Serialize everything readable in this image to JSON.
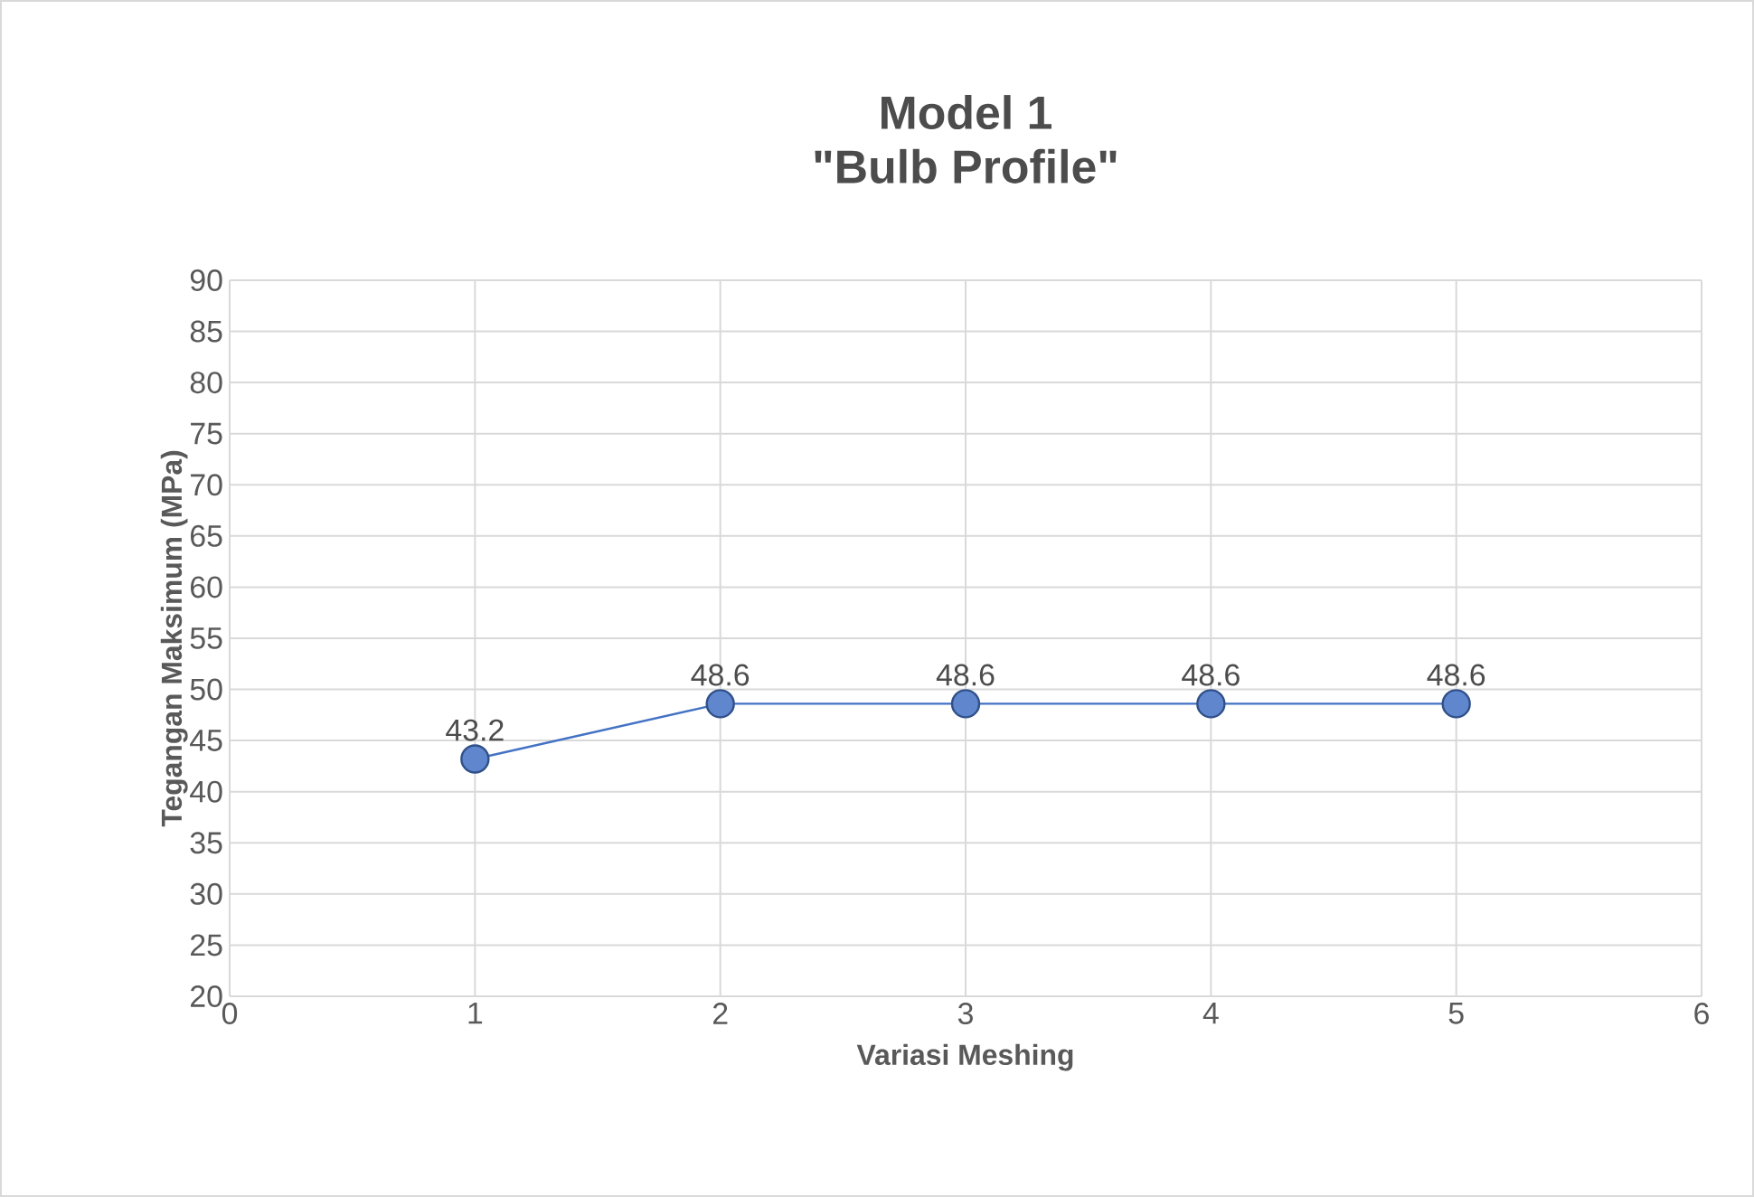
{
  "chart_data": {
    "type": "line",
    "title": "Model 1",
    "subtitle": "\"Bulb Profile\"",
    "xlabel": "Variasi Meshing",
    "ylabel": "Tegangan Maksimum (MPa)",
    "x": [
      1,
      2,
      3,
      4,
      5
    ],
    "series": [
      {
        "color": "#4472c4",
        "values": [
          43.2,
          48.6,
          48.6,
          48.6,
          48.6
        ]
      }
    ],
    "xlim": [
      0,
      6
    ],
    "xticks": [
      0,
      1,
      2,
      3,
      4,
      5,
      6
    ],
    "ylim": [
      20,
      90
    ],
    "yticks": [
      20,
      25,
      30,
      35,
      40,
      45,
      50,
      55,
      60,
      65,
      70,
      75,
      80,
      85,
      90
    ],
    "grid": true,
    "marker": "circle",
    "line_style": "solid",
    "data_labels": true,
    "legend": false
  }
}
